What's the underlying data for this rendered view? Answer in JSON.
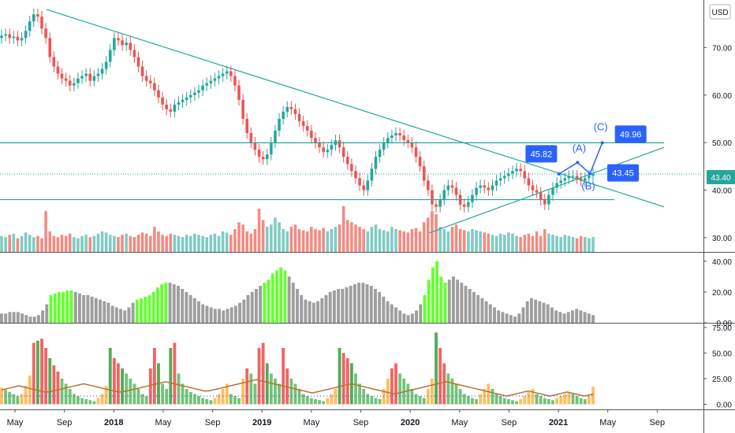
{
  "currency_label": "USD",
  "last_price_label": "43.40",
  "colors": {
    "up": "#26a69a",
    "down": "#ef5350",
    "vol_up": "#80cbc4",
    "vol_down": "#f28b82",
    "trend": "#26a69a",
    "projection": "#2962ff",
    "label_bg": "#2962ff",
    "hist_green": "#66ff33",
    "hist_gray": "#9e9e9e",
    "ma_brown": "#b87333",
    "dotted_blue": "#2962ff"
  },
  "x_axis": {
    "ticks": [
      "May",
      "Sep",
      "2018",
      "May",
      "Sep",
      "2019",
      "May",
      "Sep",
      "2020",
      "May",
      "Sep",
      "2021",
      "May",
      "Sep"
    ],
    "bold": [
      "2018",
      "2019",
      "2020",
      "2021"
    ]
  },
  "chart_data": [
    {
      "type": "candlestick",
      "title": "",
      "ylim": [
        27,
        80
      ],
      "y_ticks": [
        "30.00",
        "40.00",
        "50.00",
        "60.00",
        "70.00"
      ],
      "x_range": [
        "2017-05",
        "2021-10"
      ],
      "closes": [
        72.5,
        72.8,
        72.0,
        72.3,
        71.5,
        72.0,
        73.5,
        75.5,
        77.0,
        76.5,
        74.0,
        72.0,
        68.0,
        66.0,
        64.5,
        63.5,
        63.0,
        62.0,
        62.5,
        63.5,
        64.0,
        64.5,
        63.0,
        64.0,
        64.5,
        65.5,
        67.0,
        69.5,
        72.0,
        71.5,
        70.5,
        71.0,
        69.5,
        68.0,
        66.0,
        64.0,
        63.0,
        62.5,
        61.0,
        59.5,
        58.0,
        57.0,
        56.5,
        58.0,
        58.5,
        59.0,
        59.5,
        60.0,
        60.5,
        61.0,
        62.0,
        62.5,
        63.0,
        63.5,
        64.0,
        64.5,
        65.0,
        64.0,
        62.0,
        59.0,
        55.0,
        52.0,
        50.0,
        48.5,
        47.0,
        46.5,
        47.5,
        50.0,
        52.5,
        55.0,
        56.5,
        57.5,
        57.0,
        56.0,
        54.5,
        53.5,
        52.5,
        51.0,
        50.0,
        49.0,
        48.0,
        48.5,
        49.5,
        50.5,
        49.0,
        47.0,
        45.5,
        44.0,
        42.5,
        41.0,
        40.0,
        42.0,
        44.5,
        47.0,
        48.5,
        50.0,
        51.0,
        51.5,
        52.0,
        51.5,
        50.5,
        50.0,
        49.0,
        47.0,
        45.0,
        42.0,
        40.0,
        37.0,
        36.5,
        38.0,
        40.0,
        41.0,
        40.5,
        39.0,
        37.0,
        36.5,
        37.5,
        39.0,
        40.5,
        41.0,
        40.5,
        40.0,
        41.0,
        42.0,
        42.5,
        43.0,
        43.5,
        44.0,
        44.5,
        44.0,
        42.5,
        41.0,
        40.0,
        39.5,
        38.0,
        37.0,
        39.0,
        40.5,
        41.5,
        42.0,
        42.5,
        43.0,
        43.0,
        42.5,
        42.0,
        42.5,
        43.0,
        43.4
      ],
      "volume": [
        14,
        13,
        15,
        16,
        12,
        14,
        17,
        15,
        13,
        14,
        12,
        36,
        18,
        14,
        13,
        15,
        14,
        16,
        13,
        12,
        14,
        15,
        13,
        14,
        16,
        18,
        17,
        15,
        14,
        13,
        15,
        16,
        14,
        13,
        15,
        17,
        16,
        14,
        22,
        18,
        15,
        14,
        16,
        15,
        14,
        13,
        15,
        14,
        16,
        15,
        14,
        13,
        15,
        16,
        14,
        18,
        17,
        15,
        20,
        26,
        24,
        18,
        16,
        20,
        38,
        28,
        22,
        24,
        30,
        26,
        20,
        18,
        22,
        24,
        20,
        19,
        18,
        22,
        20,
        19,
        21,
        18,
        20,
        22,
        24,
        40,
        28,
        26,
        24,
        22,
        20,
        18,
        22,
        24,
        20,
        19,
        18,
        22,
        20,
        19,
        18,
        17,
        20,
        21,
        18,
        26,
        30,
        36,
        33,
        22,
        20,
        18,
        22,
        24,
        20,
        19,
        18,
        20,
        19,
        18,
        17,
        16,
        15,
        14,
        16,
        15,
        17,
        16,
        14,
        13,
        15,
        16,
        14,
        18,
        14,
        20,
        16,
        15,
        14,
        13,
        15,
        14,
        13,
        12,
        14,
        13,
        12,
        13
      ],
      "trendlines": [
        {
          "x1": "2017-08",
          "y1": 78.0,
          "x2": "2021-10",
          "y2": 36.5
        },
        {
          "x1": "2020-03",
          "y1": 31.0,
          "x2": "2021-10",
          "y2": 49.0
        }
      ],
      "horizontal_levels": [
        {
          "y": 49.96,
          "from": "2017-05",
          "to": "2021-10"
        },
        {
          "y": 38.0,
          "from": "2017-05",
          "to": "2021-06"
        }
      ],
      "dotted_level": 43.4,
      "projection": {
        "points": [
          [
            "2021-02",
            43.4
          ],
          [
            "2021-03",
            45.82
          ],
          [
            "2021-04",
            43.45
          ],
          [
            "2021-05",
            49.96
          ]
        ],
        "wave_labels": [
          "(A)",
          "(B)",
          "(C)"
        ],
        "price_labels": [
          "45.82",
          "43.45",
          "49.96"
        ]
      }
    },
    {
      "type": "bar",
      "title": "",
      "ylim": [
        0,
        45
      ],
      "y_ticks": [
        "0.00",
        "20.00",
        "40.00"
      ],
      "values": [
        6,
        6,
        7,
        7,
        7,
        6,
        5,
        4,
        4,
        5,
        8,
        12,
        18,
        19,
        20,
        20,
        21,
        21,
        20,
        19,
        18,
        18,
        17,
        16,
        15,
        14,
        13,
        11,
        10,
        9,
        8,
        10,
        13,
        15,
        16,
        17,
        18,
        20,
        23,
        25,
        26,
        26,
        25,
        24,
        22,
        20,
        18,
        16,
        14,
        12,
        11,
        10,
        9,
        9,
        8,
        9,
        10,
        11,
        13,
        15,
        18,
        20,
        22,
        24,
        26,
        28,
        32,
        34,
        36,
        34,
        30,
        26,
        22,
        18,
        15,
        14,
        13,
        14,
        16,
        18,
        20,
        21,
        22,
        22,
        23,
        24,
        25,
        26,
        26,
        25,
        24,
        22,
        20,
        17,
        14,
        12,
        10,
        8,
        6,
        5,
        6,
        8,
        12,
        18,
        28,
        36,
        40,
        30,
        26,
        28,
        30,
        28,
        26,
        24,
        22,
        20,
        18,
        16,
        14,
        12,
        10,
        8,
        7,
        6,
        5,
        4,
        6,
        10,
        14,
        16,
        15,
        14,
        13,
        12,
        10,
        8,
        7,
        6,
        7,
        8,
        9,
        8,
        7,
        6,
        5
      ],
      "highlight_ranges": [
        [
          12,
          17
        ],
        [
          33,
          40
        ],
        [
          64,
          69
        ],
        [
          103,
          108
        ]
      ]
    },
    {
      "type": "bar",
      "title": "",
      "ylim": [
        -5,
        78
      ],
      "y_ticks": [
        "0.00",
        "25.00",
        "50.00",
        "75.00"
      ],
      "values": [
        16,
        14,
        12,
        10,
        8,
        10,
        18,
        28,
        60,
        62,
        64,
        55,
        45,
        38,
        32,
        25,
        20,
        15,
        10,
        8,
        6,
        5,
        4,
        3,
        6,
        10,
        18,
        55,
        45,
        40,
        35,
        30,
        25,
        20,
        15,
        10,
        8,
        35,
        55,
        40,
        20,
        15,
        55,
        60,
        30,
        20,
        15,
        12,
        10,
        8,
        6,
        5,
        4,
        6,
        10,
        15,
        20,
        10,
        8,
        6,
        25,
        35,
        30,
        20,
        55,
        60,
        40,
        30,
        25,
        20,
        55,
        35,
        25,
        20,
        15,
        10,
        8,
        6,
        5,
        4,
        3,
        6,
        10,
        15,
        55,
        50,
        45,
        40,
        30,
        20,
        15,
        10,
        8,
        6,
        5,
        15,
        25,
        35,
        40,
        30,
        25,
        20,
        15,
        10,
        8,
        6,
        15,
        25,
        70,
        55,
        40,
        30,
        25,
        20,
        15,
        10,
        8,
        6,
        5,
        10,
        15,
        20,
        15,
        10,
        8,
        6,
        5,
        4,
        3,
        5,
        8,
        12,
        15,
        10,
        8,
        6,
        5,
        4,
        6,
        8,
        10,
        12,
        10,
        8,
        6,
        5,
        8,
        17
      ],
      "series_lines": [
        {
          "name": "",
          "color": "#b87333",
          "values": [
            14,
            15,
            16,
            17,
            18,
            17,
            16,
            15,
            14,
            13,
            12,
            12,
            13,
            14,
            15,
            16,
            17,
            18,
            19,
            20,
            19,
            18,
            17,
            16,
            15,
            14,
            13,
            12,
            12,
            13,
            14,
            15,
            16,
            17,
            18,
            19,
            20,
            21,
            22,
            21,
            20,
            19,
            18,
            17,
            16,
            15,
            14,
            13,
            13,
            14,
            15,
            16,
            17,
            18,
            19,
            20,
            21,
            22,
            23,
            24,
            23,
            22,
            21,
            20,
            19,
            18,
            17,
            16,
            15,
            14,
            13,
            12,
            11,
            12,
            13,
            14,
            15,
            16,
            17,
            18,
            19,
            20,
            19,
            18,
            17,
            16,
            15,
            14,
            13,
            12,
            11,
            10,
            11,
            12,
            13,
            14,
            15,
            16,
            17,
            18,
            19,
            20,
            21,
            22,
            21,
            20,
            19,
            18,
            17,
            16,
            15,
            14,
            13,
            12,
            11,
            10,
            9,
            8,
            9,
            10,
            11,
            12,
            13,
            12,
            11,
            10,
            9,
            8,
            9,
            10,
            11,
            12,
            11,
            10,
            9,
            8,
            9,
            10
          ]
        },
        {
          "name": "",
          "color": "#2962ff",
          "dotted": true,
          "values": [
            8,
            8,
            8,
            8,
            8,
            8,
            8,
            8,
            8,
            8
          ]
        }
      ]
    }
  ]
}
